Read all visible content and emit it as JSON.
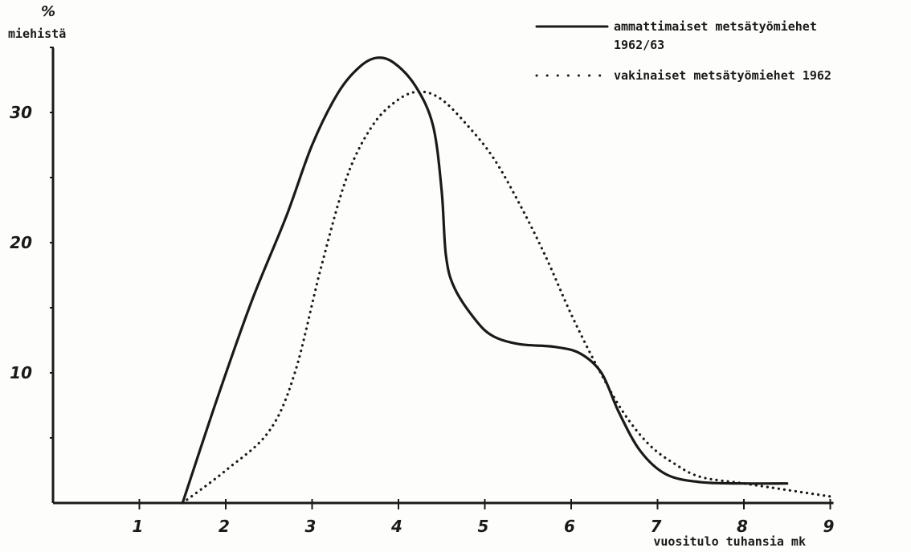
{
  "chart_data": {
    "type": "line",
    "ylabel_unit": "%",
    "ylabel": "miehistä",
    "xlabel": "vuositulo tuhansia mk",
    "x_ticks": [
      "1",
      "2",
      "3",
      "4",
      "5",
      "6",
      "7",
      "8",
      "9"
    ],
    "y_ticks": [
      "10",
      "20",
      "30"
    ],
    "xlim": [
      0,
      9
    ],
    "ylim": [
      0,
      35
    ],
    "grid": false,
    "legend_position": "top-right",
    "series": [
      {
        "name": "ammattimaiset metsätyömiehet 1962/63",
        "name_lines": [
          "ammattimaiset metsätyömiehet",
          "1962/63"
        ],
        "style": "solid",
        "color": "#1a1a1a",
        "points": [
          [
            1.5,
            0.0
          ],
          [
            1.9,
            8.0
          ],
          [
            2.3,
            15.5
          ],
          [
            2.7,
            22.0
          ],
          [
            3.0,
            27.5
          ],
          [
            3.3,
            31.5
          ],
          [
            3.55,
            33.5
          ],
          [
            3.75,
            34.2
          ],
          [
            3.95,
            33.8
          ],
          [
            4.2,
            32.0
          ],
          [
            4.4,
            29.0
          ],
          [
            4.5,
            24.0
          ],
          [
            4.55,
            19.0
          ],
          [
            4.65,
            16.5
          ],
          [
            4.9,
            14.0
          ],
          [
            5.1,
            12.8
          ],
          [
            5.4,
            12.2
          ],
          [
            5.8,
            12.0
          ],
          [
            6.1,
            11.5
          ],
          [
            6.35,
            10.0
          ],
          [
            6.55,
            7.0
          ],
          [
            6.8,
            4.0
          ],
          [
            7.1,
            2.2
          ],
          [
            7.5,
            1.6
          ],
          [
            8.0,
            1.5
          ],
          [
            8.5,
            1.5
          ]
        ]
      },
      {
        "name": "vakinaiset metsätyömiehet 1962",
        "name_lines": [
          "vakinaiset metsätyömiehet 1962"
        ],
        "style": "dotted",
        "color": "#1a1a1a",
        "points": [
          [
            1.5,
            0.0
          ],
          [
            2.0,
            2.5
          ],
          [
            2.5,
            5.5
          ],
          [
            2.8,
            10.0
          ],
          [
            3.1,
            18.0
          ],
          [
            3.4,
            25.0
          ],
          [
            3.7,
            29.0
          ],
          [
            4.0,
            31.0
          ],
          [
            4.25,
            31.6
          ],
          [
            4.5,
            31.0
          ],
          [
            4.8,
            29.0
          ],
          [
            5.1,
            26.5
          ],
          [
            5.4,
            23.0
          ],
          [
            5.7,
            19.0
          ],
          [
            6.0,
            14.5
          ],
          [
            6.3,
            10.5
          ],
          [
            6.6,
            7.0
          ],
          [
            6.9,
            4.5
          ],
          [
            7.2,
            3.0
          ],
          [
            7.5,
            2.0
          ],
          [
            8.0,
            1.5
          ],
          [
            8.5,
            1.0
          ],
          [
            9.0,
            0.5
          ]
        ]
      }
    ]
  }
}
